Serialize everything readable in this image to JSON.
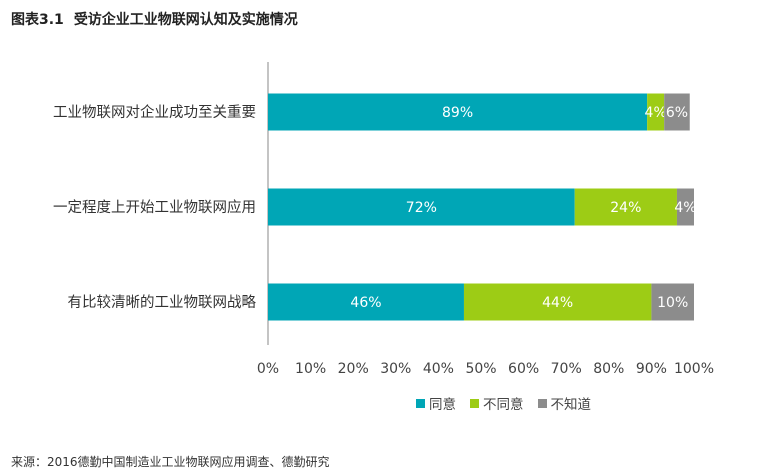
{
  "figure": {
    "label": "图表3.1",
    "title": "受访企业工业物联网认知及实施情况",
    "source": "来源：2016德勤中国制造业工业物联网应用调查、德勤研究"
  },
  "colors": {
    "agree": "#00A6B6",
    "disagree": "#9DCC15",
    "unknown": "#8C8C8C",
    "axis": "#8a8a8a"
  },
  "chart_data": {
    "type": "bar",
    "orientation": "horizontal",
    "stacked": true,
    "categories": [
      "工业物联网对企业成功至关重要",
      "一定程度上开始工业物联网应用",
      "有比较清晰的工业物联网战略"
    ],
    "series": [
      {
        "name": "同意",
        "values": [
          89,
          72,
          46
        ],
        "labels": [
          "89%",
          "72%",
          "46%"
        ],
        "color": "#00A6B6"
      },
      {
        "name": "不同意",
        "values": [
          4,
          24,
          44
        ],
        "labels": [
          "4%",
          "24%",
          "44%"
        ],
        "color": "#9DCC15"
      },
      {
        "name": "不知道",
        "values": [
          6,
          4,
          10
        ],
        "labels": [
          "6%",
          "4%",
          "10%"
        ],
        "color": "#8C8C8C"
      }
    ],
    "xlim": [
      0,
      100
    ],
    "xticks": [
      "0%",
      "10%",
      "20%",
      "30%",
      "40%",
      "50%",
      "60%",
      "70%",
      "80%",
      "90%",
      "100%"
    ],
    "grid": false,
    "legend_position": "bottom"
  }
}
